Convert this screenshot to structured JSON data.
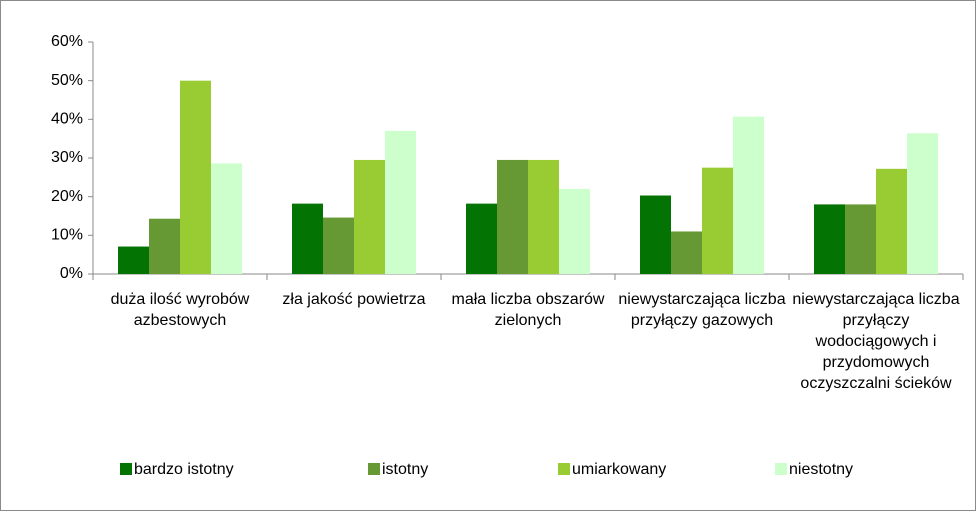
{
  "chart_data": {
    "type": "bar",
    "categories": [
      "duża ilość wyrobów azbestowych",
      "zła jakość powietrza",
      "mała liczba obszarów zielonych",
      "niewystarczająca liczba przyłączy gazowych",
      "niewystarczająca liczba przyłączy wodociągowych i przydomowych oczyszczalni ścieków"
    ],
    "series": [
      {
        "name": "bardzo istotny",
        "color": "#037303",
        "values": [
          7.1,
          18.2,
          18.2,
          20.3,
          18.0
        ]
      },
      {
        "name": "istotny",
        "color": "#669933",
        "values": [
          14.3,
          14.6,
          29.5,
          11.0,
          18.0
        ]
      },
      {
        "name": "umiarkowany",
        "color": "#99cc33",
        "values": [
          50.0,
          29.5,
          29.5,
          27.5,
          27.2
        ]
      },
      {
        "name": "niestotny",
        "color": "#ccffcc",
        "values": [
          28.6,
          37.0,
          22.0,
          40.7,
          36.4
        ]
      }
    ],
    "ylim": [
      0,
      60
    ],
    "yticks": [
      {
        "value": 0,
        "label": "0%"
      },
      {
        "value": 10,
        "label": "10%"
      },
      {
        "value": 20,
        "label": "20%"
      },
      {
        "value": 30,
        "label": "30%"
      },
      {
        "value": 40,
        "label": "40%"
      },
      {
        "value": 50,
        "label": "50%"
      },
      {
        "value": 60,
        "label": "60%"
      }
    ],
    "grid": false,
    "legend": "bottom"
  }
}
